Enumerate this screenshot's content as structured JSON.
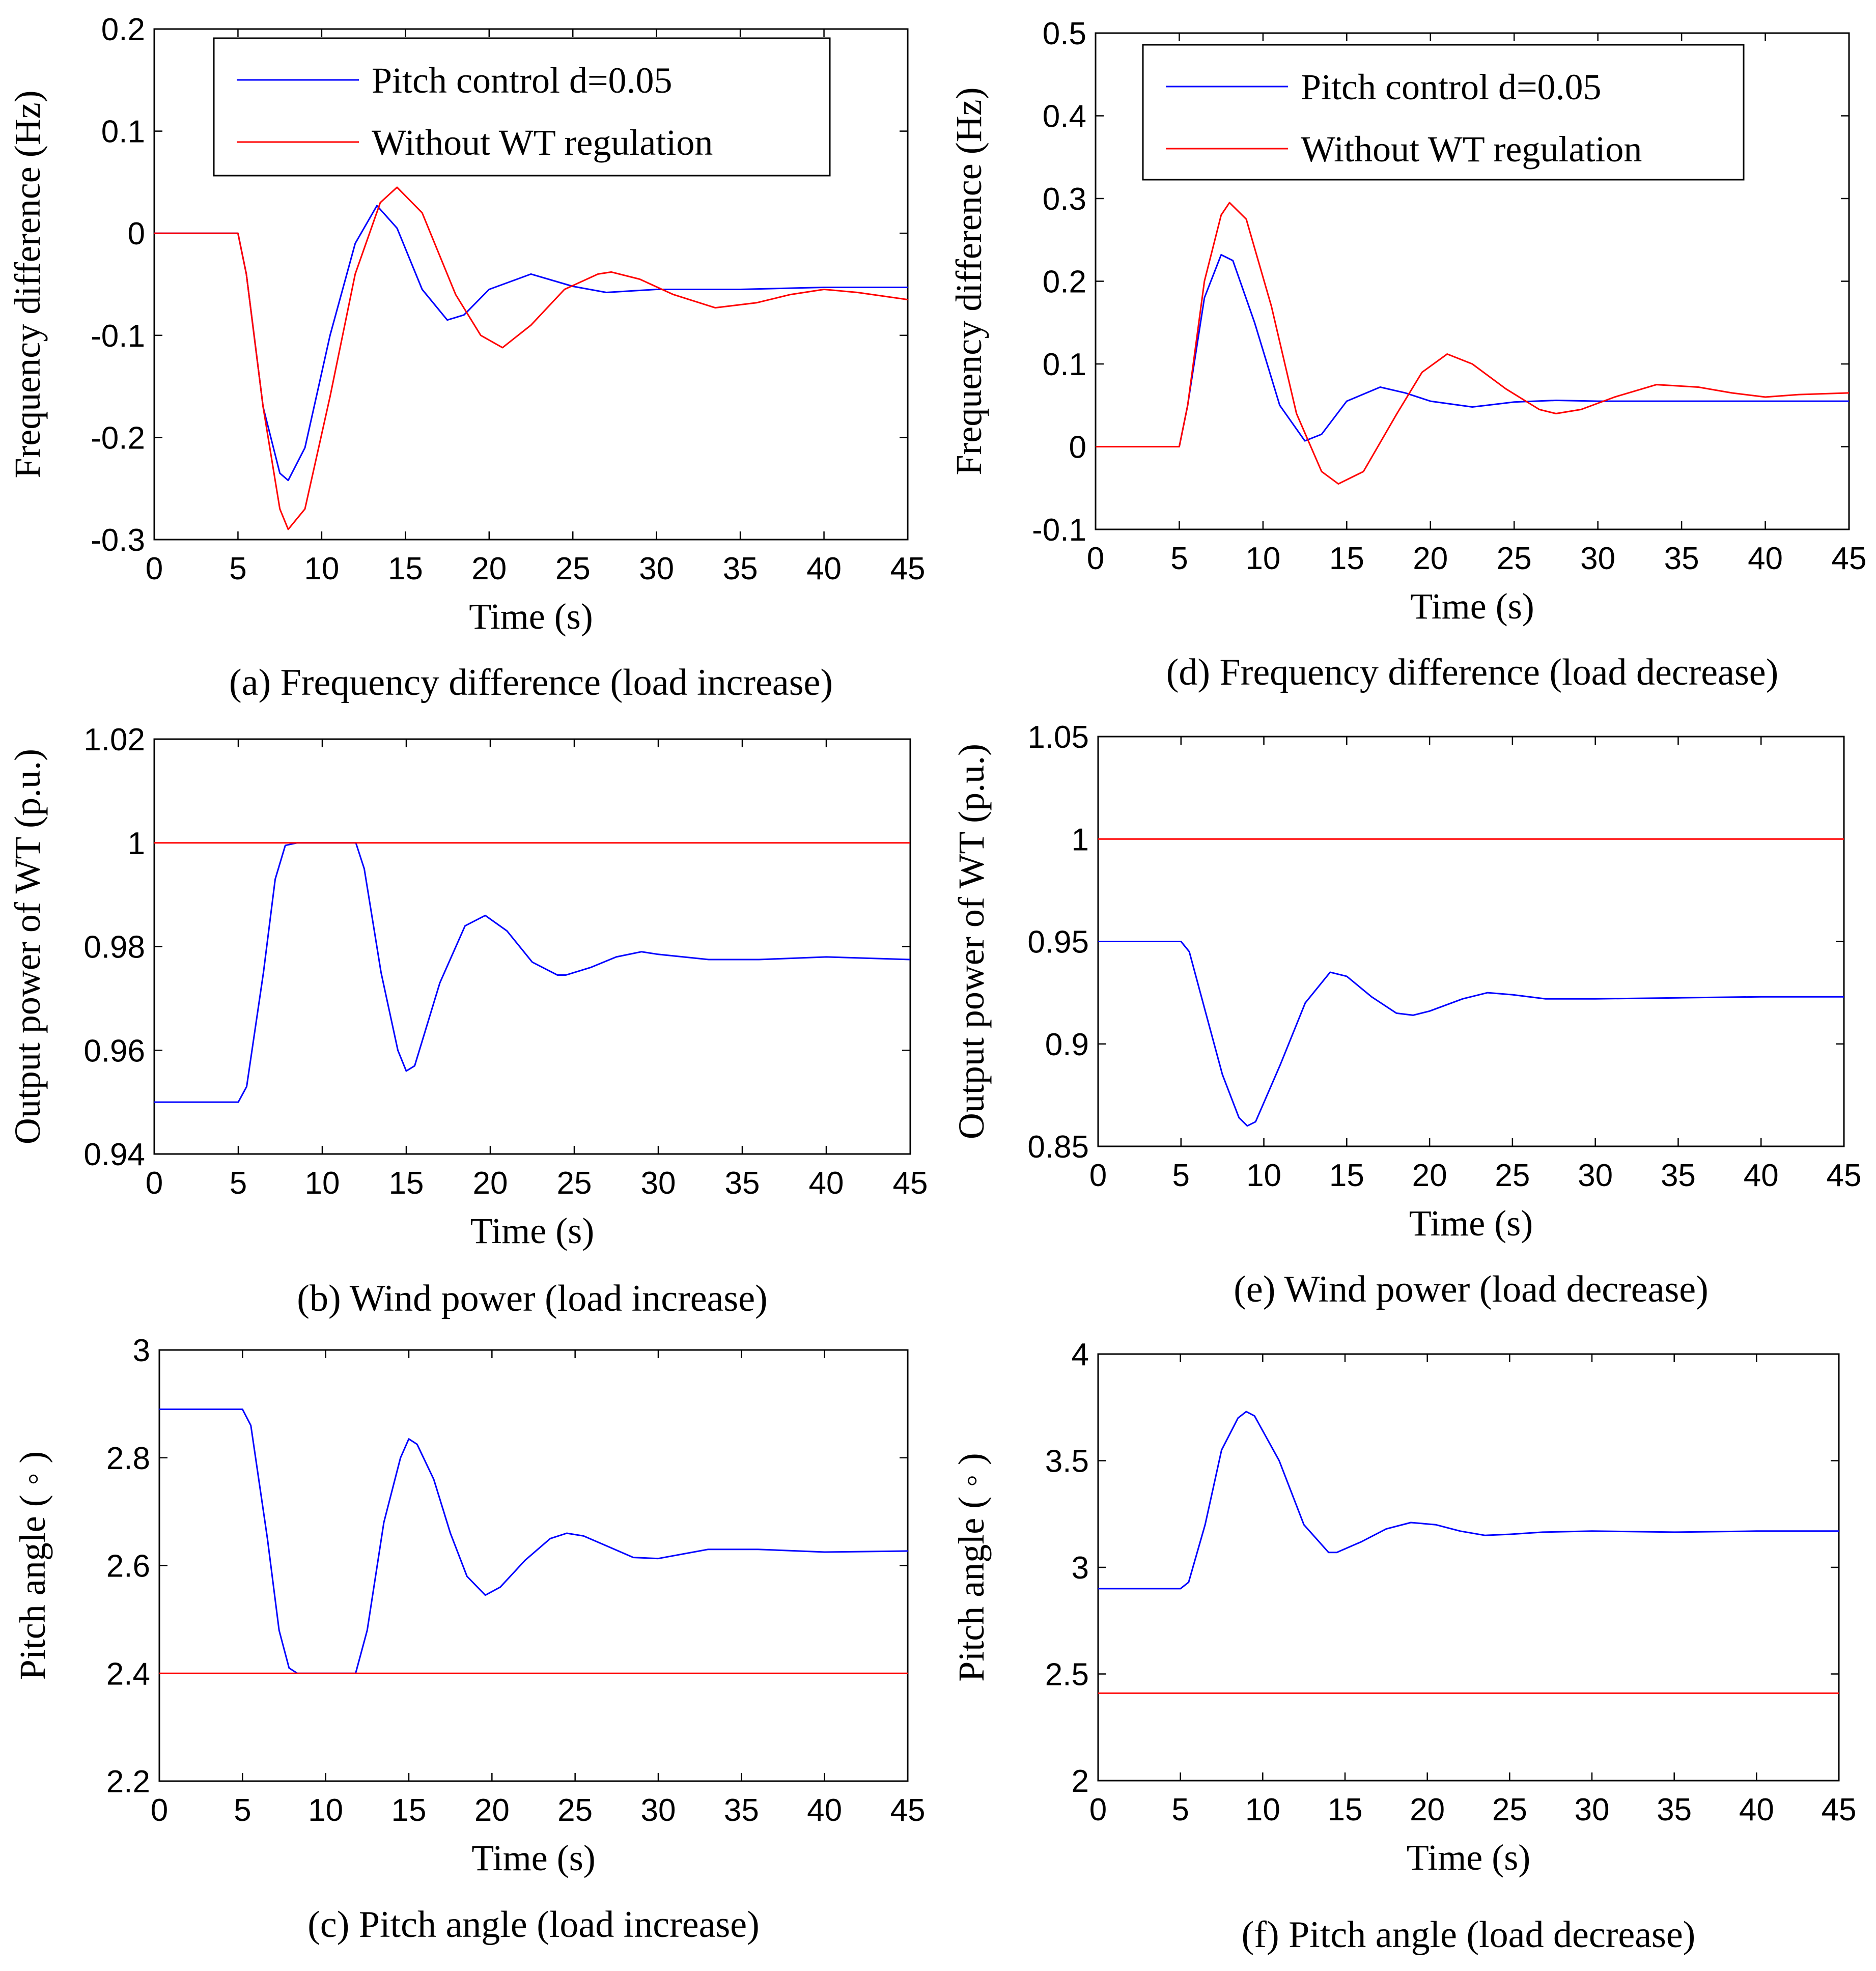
{
  "figure": {
    "charts": [
      {
        "id": "a",
        "caption": "(a) Frequency difference (load increase)",
        "type": "line",
        "xlabel": "Time (s)",
        "ylabel": "Frequency difference (Hz)",
        "xlim": [
          0,
          45
        ],
        "ylim": [
          -0.3,
          0.2
        ],
        "xticks": [
          0,
          5,
          10,
          15,
          20,
          25,
          30,
          35,
          40,
          45
        ],
        "yticks": [
          -0.3,
          -0.2,
          -0.1,
          0,
          0.1,
          0.2
        ],
        "ytick_labels": [
          "-0.3",
          "-0.2",
          "-0.1",
          "0",
          "0.1",
          "0.2"
        ],
        "legend": {
          "placement": "top",
          "entries": [
            "Pitch control d=0.05",
            "Without WT regulation"
          ]
        },
        "series": [
          {
            "name": "Pitch control d=0.05",
            "color": "#0000ff",
            "x": [
              0,
              5,
              5.5,
              6.5,
              7.5,
              8.0,
              9.0,
              10.5,
              12.0,
              13.3,
              14.5,
              16.0,
              17.5,
              18.5,
              20.0,
              22.5,
              25.0,
              27.0,
              30.0,
              35.0,
              40.0,
              45.0
            ],
            "y": [
              0,
              0,
              -0.04,
              -0.17,
              -0.235,
              -0.242,
              -0.21,
              -0.1,
              -0.01,
              0.027,
              0.005,
              -0.055,
              -0.085,
              -0.08,
              -0.055,
              -0.04,
              -0.052,
              -0.058,
              -0.055,
              -0.055,
              -0.053,
              -0.053
            ]
          },
          {
            "name": "Without WT regulation",
            "color": "#ff0000",
            "x": [
              0,
              5,
              5.5,
              6.5,
              7.5,
              8.0,
              9.0,
              10.5,
              12.0,
              13.5,
              14.5,
              16.0,
              18.0,
              19.5,
              20.8,
              22.5,
              24.5,
              26.5,
              27.3,
              29.0,
              31.0,
              33.5,
              36.0,
              38.0,
              40.0,
              42.0,
              45.0
            ],
            "y": [
              0,
              0,
              -0.04,
              -0.17,
              -0.27,
              -0.29,
              -0.27,
              -0.16,
              -0.04,
              0.03,
              0.045,
              0.02,
              -0.06,
              -0.1,
              -0.112,
              -0.09,
              -0.055,
              -0.04,
              -0.038,
              -0.045,
              -0.06,
              -0.073,
              -0.068,
              -0.06,
              -0.055,
              -0.058,
              -0.065
            ]
          }
        ]
      },
      {
        "id": "d",
        "caption": "(d) Frequency difference (load decrease)",
        "type": "line",
        "xlabel": "Time (s)",
        "ylabel": "Frequency difference (Hz)",
        "xlim": [
          0,
          45
        ],
        "ylim": [
          -0.1,
          0.5
        ],
        "xticks": [
          0,
          5,
          10,
          15,
          20,
          25,
          30,
          35,
          40,
          45
        ],
        "yticks": [
          -0.1,
          0,
          0.1,
          0.2,
          0.3,
          0.4,
          0.5
        ],
        "ytick_labels": [
          "-0.1",
          "0",
          "0.1",
          "0.2",
          "0.3",
          "0.4",
          "0.5"
        ],
        "legend": {
          "placement": "top",
          "entries": [
            "Pitch control d=0.05",
            "Without WT regulation"
          ]
        },
        "series": [
          {
            "name": "Pitch control d=0.05",
            "color": "#0000ff",
            "x": [
              0,
              5,
              5.5,
              6.5,
              7.5,
              8.2,
              9.5,
              11.0,
              12.5,
              13.5,
              15.0,
              17.0,
              18.5,
              20.0,
              22.5,
              25.0,
              27.5,
              30.0,
              35.0,
              40.0,
              45.0
            ],
            "y": [
              0,
              0,
              0.05,
              0.18,
              0.232,
              0.225,
              0.15,
              0.05,
              0.007,
              0.015,
              0.055,
              0.072,
              0.065,
              0.055,
              0.048,
              0.054,
              0.056,
              0.055,
              0.055,
              0.055,
              0.055
            ]
          },
          {
            "name": "Without WT regulation",
            "color": "#ff0000",
            "x": [
              0,
              5,
              5.5,
              6.5,
              7.5,
              8.0,
              9.0,
              10.5,
              12.0,
              13.5,
              14.5,
              16.0,
              18.0,
              19.5,
              21.0,
              22.5,
              24.5,
              26.5,
              27.5,
              29.0,
              31.0,
              33.5,
              36.0,
              38.0,
              40.0,
              42.0,
              45.0
            ],
            "y": [
              0,
              0,
              0.05,
              0.2,
              0.28,
              0.295,
              0.275,
              0.17,
              0.04,
              -0.03,
              -0.045,
              -0.03,
              0.04,
              0.09,
              0.112,
              0.1,
              0.07,
              0.045,
              0.04,
              0.045,
              0.06,
              0.075,
              0.072,
              0.065,
              0.06,
              0.063,
              0.065
            ]
          }
        ]
      },
      {
        "id": "b",
        "caption": "(b) Wind power (load increase)",
        "type": "line",
        "xlabel": "Time (s)",
        "ylabel": "Output power of WT (p.u.)",
        "xlim": [
          0,
          45
        ],
        "ylim": [
          0.94,
          1.02
        ],
        "xticks": [
          0,
          5,
          10,
          15,
          20,
          25,
          30,
          35,
          40,
          45
        ],
        "yticks": [
          0.94,
          0.96,
          0.98,
          1.0,
          1.02
        ],
        "ytick_labels": [
          "0.94",
          "0.96",
          "0.98",
          "1",
          "1.02"
        ],
        "series": [
          {
            "name": "Pitch control d=0.05",
            "color": "#0000ff",
            "x": [
              0,
              5,
              5.5,
              6.5,
              7.2,
              7.8,
              8.5,
              12.0,
              12.5,
              13.5,
              14.5,
              15.0,
              15.5,
              17.0,
              18.5,
              19.7,
              21.0,
              22.5,
              24.0,
              24.5,
              26.0,
              27.5,
              29.0,
              30.0,
              33.0,
              36.0,
              40.0,
              45.0
            ],
            "y": [
              0.95,
              0.95,
              0.953,
              0.975,
              0.993,
              0.9995,
              1.0,
              1.0,
              0.995,
              0.975,
              0.96,
              0.956,
              0.957,
              0.973,
              0.984,
              0.986,
              0.983,
              0.977,
              0.9745,
              0.9745,
              0.976,
              0.978,
              0.979,
              0.9785,
              0.9775,
              0.9775,
              0.978,
              0.9775
            ]
          },
          {
            "name": "Without WT regulation",
            "color": "#ff0000",
            "x": [
              0,
              45
            ],
            "y": [
              1.0,
              1.0
            ]
          }
        ]
      },
      {
        "id": "e",
        "caption": "(e) Wind power (load decrease)",
        "type": "line",
        "xlabel": "Time (s)",
        "ylabel": "Output power of WT (p.u.)",
        "xlim": [
          0,
          45
        ],
        "ylim": [
          0.85,
          1.05
        ],
        "xticks": [
          0,
          5,
          10,
          15,
          20,
          25,
          30,
          35,
          40,
          45
        ],
        "yticks": [
          0.85,
          0.9,
          0.95,
          1.0,
          1.05
        ],
        "ytick_labels": [
          "0.85",
          "0.9",
          "0.95",
          "1",
          "1.05"
        ],
        "series": [
          {
            "name": "Pitch control d=0.05",
            "color": "#0000ff",
            "x": [
              0,
              5,
              5.5,
              6.5,
              7.5,
              8.5,
              9.0,
              9.5,
              11.0,
              12.5,
              14.0,
              15.0,
              16.5,
              18.0,
              19.0,
              20.0,
              22.0,
              23.5,
              25.0,
              27.0,
              30.0,
              35.0,
              40.0,
              45.0
            ],
            "y": [
              0.95,
              0.95,
              0.945,
              0.915,
              0.885,
              0.864,
              0.86,
              0.862,
              0.89,
              0.92,
              0.935,
              0.933,
              0.923,
              0.915,
              0.914,
              0.916,
              0.922,
              0.925,
              0.924,
              0.922,
              0.922,
              0.9225,
              0.923,
              0.923
            ]
          },
          {
            "name": "Without WT regulation",
            "color": "#ff0000",
            "x": [
              0,
              45
            ],
            "y": [
              1.0,
              1.0
            ]
          }
        ]
      },
      {
        "id": "c",
        "caption": "(c) Pitch angle (load increase)",
        "type": "line",
        "xlabel": "Time (s)",
        "ylabel": "Pitch angle ( ◦ )",
        "xlim": [
          0,
          45
        ],
        "ylim": [
          2.2,
          3.0
        ],
        "xticks": [
          0,
          5,
          10,
          15,
          20,
          25,
          30,
          35,
          40,
          45
        ],
        "yticks": [
          2.2,
          2.4,
          2.6,
          2.8,
          3.0
        ],
        "ytick_labels": [
          "2.2",
          "2.4",
          "2.6",
          "2.8",
          "3"
        ],
        "series": [
          {
            "name": "Pitch control d=0.05",
            "color": "#0000ff",
            "x": [
              0,
              5,
              5.5,
              6.5,
              7.2,
              7.8,
              8.3,
              11.8,
              12.5,
              13.5,
              14.5,
              15.0,
              15.5,
              16.5,
              17.5,
              18.5,
              19.6,
              20.5,
              22.0,
              23.5,
              24.5,
              25.5,
              27.0,
              28.5,
              30.0,
              33.0,
              36.0,
              40.0,
              45.0
            ],
            "y": [
              2.89,
              2.89,
              2.86,
              2.65,
              2.48,
              2.41,
              2.4,
              2.4,
              2.48,
              2.68,
              2.8,
              2.835,
              2.825,
              2.76,
              2.66,
              2.58,
              2.545,
              2.56,
              2.61,
              2.65,
              2.66,
              2.655,
              2.635,
              2.615,
              2.613,
              2.63,
              2.63,
              2.625,
              2.627
            ]
          },
          {
            "name": "Without WT regulation",
            "color": "#ff0000",
            "x": [
              0,
              45
            ],
            "y": [
              2.4,
              2.4
            ]
          }
        ]
      },
      {
        "id": "f",
        "caption": "(f) Pitch angle (load decrease)",
        "type": "line",
        "xlabel": "Time (s)",
        "ylabel": "Pitch angle ( ◦ )",
        "xlim": [
          0,
          45
        ],
        "ylim": [
          2.0,
          4.0
        ],
        "xticks": [
          0,
          5,
          10,
          15,
          20,
          25,
          30,
          35,
          40,
          45
        ],
        "yticks": [
          2.0,
          2.5,
          3.0,
          3.5,
          4.0
        ],
        "ytick_labels": [
          "2",
          "2.5",
          "3",
          "3.5",
          "4"
        ],
        "series": [
          {
            "name": "Pitch control d=0.05",
            "color": "#0000ff",
            "x": [
              0,
              5,
              5.5,
              6.5,
              7.5,
              8.5,
              9.0,
              9.5,
              11.0,
              12.5,
              14.0,
              14.5,
              16.0,
              17.5,
              19.0,
              20.5,
              22.0,
              23.5,
              25.0,
              27.0,
              30.0,
              35.0,
              40.0,
              45.0
            ],
            "y": [
              2.9,
              2.9,
              2.93,
              3.2,
              3.55,
              3.7,
              3.73,
              3.71,
              3.5,
              3.2,
              3.07,
              3.07,
              3.12,
              3.18,
              3.21,
              3.2,
              3.17,
              3.15,
              3.155,
              3.165,
              3.17,
              3.165,
              3.17,
              3.17
            ]
          },
          {
            "name": "Without WT regulation",
            "color": "#ff0000",
            "x": [
              0,
              45
            ],
            "y": [
              2.41,
              2.41
            ]
          }
        ]
      }
    ]
  }
}
